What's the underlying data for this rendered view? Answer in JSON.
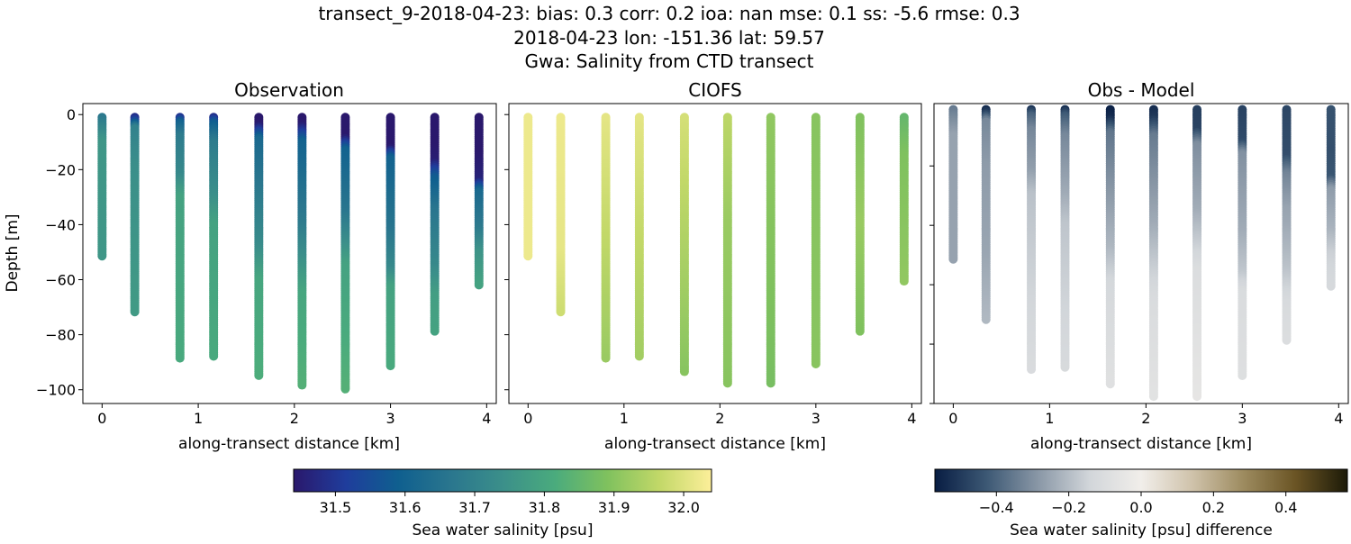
{
  "title_lines": [
    "transect_9-2018-04-23: bias: 0.3  corr: 0.2  ioa: nan  mse: 0.1  ss: -5.6  rmse: 0.3",
    "2018-04-23 lon: -151.36 lat: 59.57",
    "Gwa: Salinity from CTD transect"
  ],
  "chart_data": [
    {
      "type": "scatter",
      "title": "Observation",
      "xlabel": "along-transect distance [km]",
      "ylabel": "Depth [m]",
      "xlim": [
        -0.2,
        4.1
      ],
      "ylim": [
        -105,
        4
      ],
      "xticks": [
        0,
        1,
        2,
        3,
        4
      ],
      "yticks": [
        0,
        -20,
        -40,
        -60,
        -80,
        -100
      ],
      "ytick_labels": [
        "0",
        "−20",
        "−40",
        "−60",
        "−80",
        "−100"
      ],
      "colormap": "haline",
      "stations": [
        {
          "x": 0.0,
          "max_depth": 52,
          "profile": [
            [
              0,
              31.66
            ],
            [
              4,
              31.7
            ],
            [
              10,
              31.76
            ],
            [
              52,
              31.76
            ]
          ]
        },
        {
          "x": 0.34,
          "max_depth": 72,
          "profile": [
            [
              0,
              31.45
            ],
            [
              2,
              31.52
            ],
            [
              5,
              31.7
            ],
            [
              20,
              31.74
            ],
            [
              72,
              31.77
            ]
          ]
        },
        {
          "x": 0.81,
          "max_depth": 89,
          "profile": [
            [
              0,
              31.45
            ],
            [
              3,
              31.6
            ],
            [
              8,
              31.68
            ],
            [
              22,
              31.72
            ],
            [
              30,
              31.79
            ],
            [
              89,
              31.81
            ]
          ]
        },
        {
          "x": 1.16,
          "max_depth": 88,
          "profile": [
            [
              0,
              31.44
            ],
            [
              3,
              31.58
            ],
            [
              10,
              31.68
            ],
            [
              30,
              31.74
            ],
            [
              40,
              31.79
            ],
            [
              88,
              31.81
            ]
          ]
        },
        {
          "x": 1.63,
          "max_depth": 95,
          "profile": [
            [
              0,
              31.42
            ],
            [
              4,
              31.45
            ],
            [
              9,
              31.62
            ],
            [
              30,
              31.68
            ],
            [
              48,
              31.73
            ],
            [
              60,
              31.8
            ],
            [
              95,
              31.82
            ]
          ]
        },
        {
          "x": 2.08,
          "max_depth": 99,
          "profile": [
            [
              0,
              31.42
            ],
            [
              4,
              31.45
            ],
            [
              10,
              31.6
            ],
            [
              40,
              31.68
            ],
            [
              52,
              31.74
            ],
            [
              65,
              31.8
            ],
            [
              99,
              31.83
            ]
          ]
        },
        {
          "x": 2.53,
          "max_depth": 100,
          "profile": [
            [
              0,
              31.42
            ],
            [
              8,
              31.43
            ],
            [
              13,
              31.6
            ],
            [
              35,
              31.66
            ],
            [
              46,
              31.73
            ],
            [
              55,
              31.79
            ],
            [
              100,
              31.83
            ]
          ]
        },
        {
          "x": 3.0,
          "max_depth": 92,
          "profile": [
            [
              0,
              31.42
            ],
            [
              12,
              31.44
            ],
            [
              16,
              31.6
            ],
            [
              42,
              31.66
            ],
            [
              56,
              31.72
            ],
            [
              63,
              31.79
            ],
            [
              92,
              31.81
            ]
          ]
        },
        {
          "x": 3.46,
          "max_depth": 79,
          "profile": [
            [
              0,
              31.42
            ],
            [
              17,
              31.45
            ],
            [
              23,
              31.58
            ],
            [
              35,
              31.66
            ],
            [
              55,
              31.72
            ],
            [
              66,
              31.78
            ],
            [
              79,
              31.79
            ]
          ]
        },
        {
          "x": 3.92,
          "max_depth": 62,
          "profile": [
            [
              0,
              31.41
            ],
            [
              24,
              31.46
            ],
            [
              28,
              31.62
            ],
            [
              42,
              31.68
            ],
            [
              50,
              31.75
            ],
            [
              62,
              31.79
            ]
          ]
        }
      ]
    },
    {
      "type": "scatter",
      "title": "CIOFS",
      "xlabel": "along-transect distance [km]",
      "xlim": [
        -0.2,
        4.1
      ],
      "ylim": [
        -105,
        4
      ],
      "xticks": [
        0,
        1,
        2,
        3,
        4
      ],
      "yticks": [
        0,
        -20,
        -40,
        -60,
        -80,
        -100
      ],
      "colormap": "haline",
      "stations": [
        {
          "x": 0.0,
          "max_depth": 52,
          "profile": [
            [
              0,
              32.02
            ],
            [
              52,
              32.02
            ]
          ]
        },
        {
          "x": 0.34,
          "max_depth": 72,
          "profile": [
            [
              0,
              32.02
            ],
            [
              50,
              32.01
            ],
            [
              72,
              31.98
            ]
          ]
        },
        {
          "x": 0.81,
          "max_depth": 89,
          "profile": [
            [
              0,
              32.01
            ],
            [
              30,
              31.98
            ],
            [
              89,
              31.92
            ]
          ]
        },
        {
          "x": 1.16,
          "max_depth": 88,
          "profile": [
            [
              0,
              32.01
            ],
            [
              30,
              31.98
            ],
            [
              88,
              31.93
            ]
          ]
        },
        {
          "x": 1.63,
          "max_depth": 94,
          "profile": [
            [
              0,
              31.99
            ],
            [
              40,
              31.95
            ],
            [
              94,
              31.9
            ]
          ]
        },
        {
          "x": 2.08,
          "max_depth": 98,
          "profile": [
            [
              0,
              31.96
            ],
            [
              40,
              31.92
            ],
            [
              98,
              31.9
            ]
          ]
        },
        {
          "x": 2.53,
          "max_depth": 98,
          "profile": [
            [
              0,
              31.91
            ],
            [
              98,
              31.88
            ]
          ]
        },
        {
          "x": 3.0,
          "max_depth": 91,
          "profile": [
            [
              0,
              31.9
            ],
            [
              91,
              31.9
            ]
          ]
        },
        {
          "x": 3.46,
          "max_depth": 79,
          "profile": [
            [
              0,
              31.89
            ],
            [
              40,
              31.92
            ],
            [
              79,
              31.89
            ]
          ]
        },
        {
          "x": 3.92,
          "max_depth": 61,
          "profile": [
            [
              0,
              31.85
            ],
            [
              15,
              31.89
            ],
            [
              61,
              31.91
            ]
          ]
        }
      ]
    },
    {
      "type": "scatter",
      "title": "Obs - Model",
      "xlabel": "along-transect distance [km]",
      "xlim": [
        -0.2,
        4.1
      ],
      "ylim": [
        -100,
        1
      ],
      "xticks": [
        0,
        1,
        2,
        3,
        4
      ],
      "yticks": [
        -20,
        -40,
        -60,
        -80,
        -100
      ],
      "colormap": "diff",
      "value": "Observation minus CIOFS"
    }
  ],
  "colorbars": [
    {
      "label": "Sea water salinity [psu]",
      "range": [
        31.44,
        32.04
      ],
      "ticks": [
        "31.5",
        "31.6",
        "31.7",
        "31.8",
        "31.9",
        "32.0"
      ],
      "tick_values": [
        31.5,
        31.6,
        31.7,
        31.8,
        31.9,
        32.0
      ]
    },
    {
      "label": "Sea water salinity [psu] difference",
      "range": [
        -0.57,
        0.57
      ],
      "ticks": [
        "−0.4",
        "−0.2",
        "0.0",
        "0.2",
        "0.4"
      ],
      "tick_values": [
        -0.4,
        -0.2,
        0.0,
        0.2,
        0.4
      ]
    }
  ],
  "colors": {
    "haline": [
      "#2a186c",
      "#1f3d9c",
      "#0f5f8f",
      "#2a768e",
      "#3b8f8a",
      "#4aab7d",
      "#7fc15e",
      "#c2d868",
      "#fdef9a"
    ],
    "diff": [
      "#081d43",
      "#3c5874",
      "#8997a6",
      "#d2d6da",
      "#f1eeea",
      "#cfc2aa",
      "#9c8a5e",
      "#6a5424",
      "#1c1a08"
    ]
  }
}
